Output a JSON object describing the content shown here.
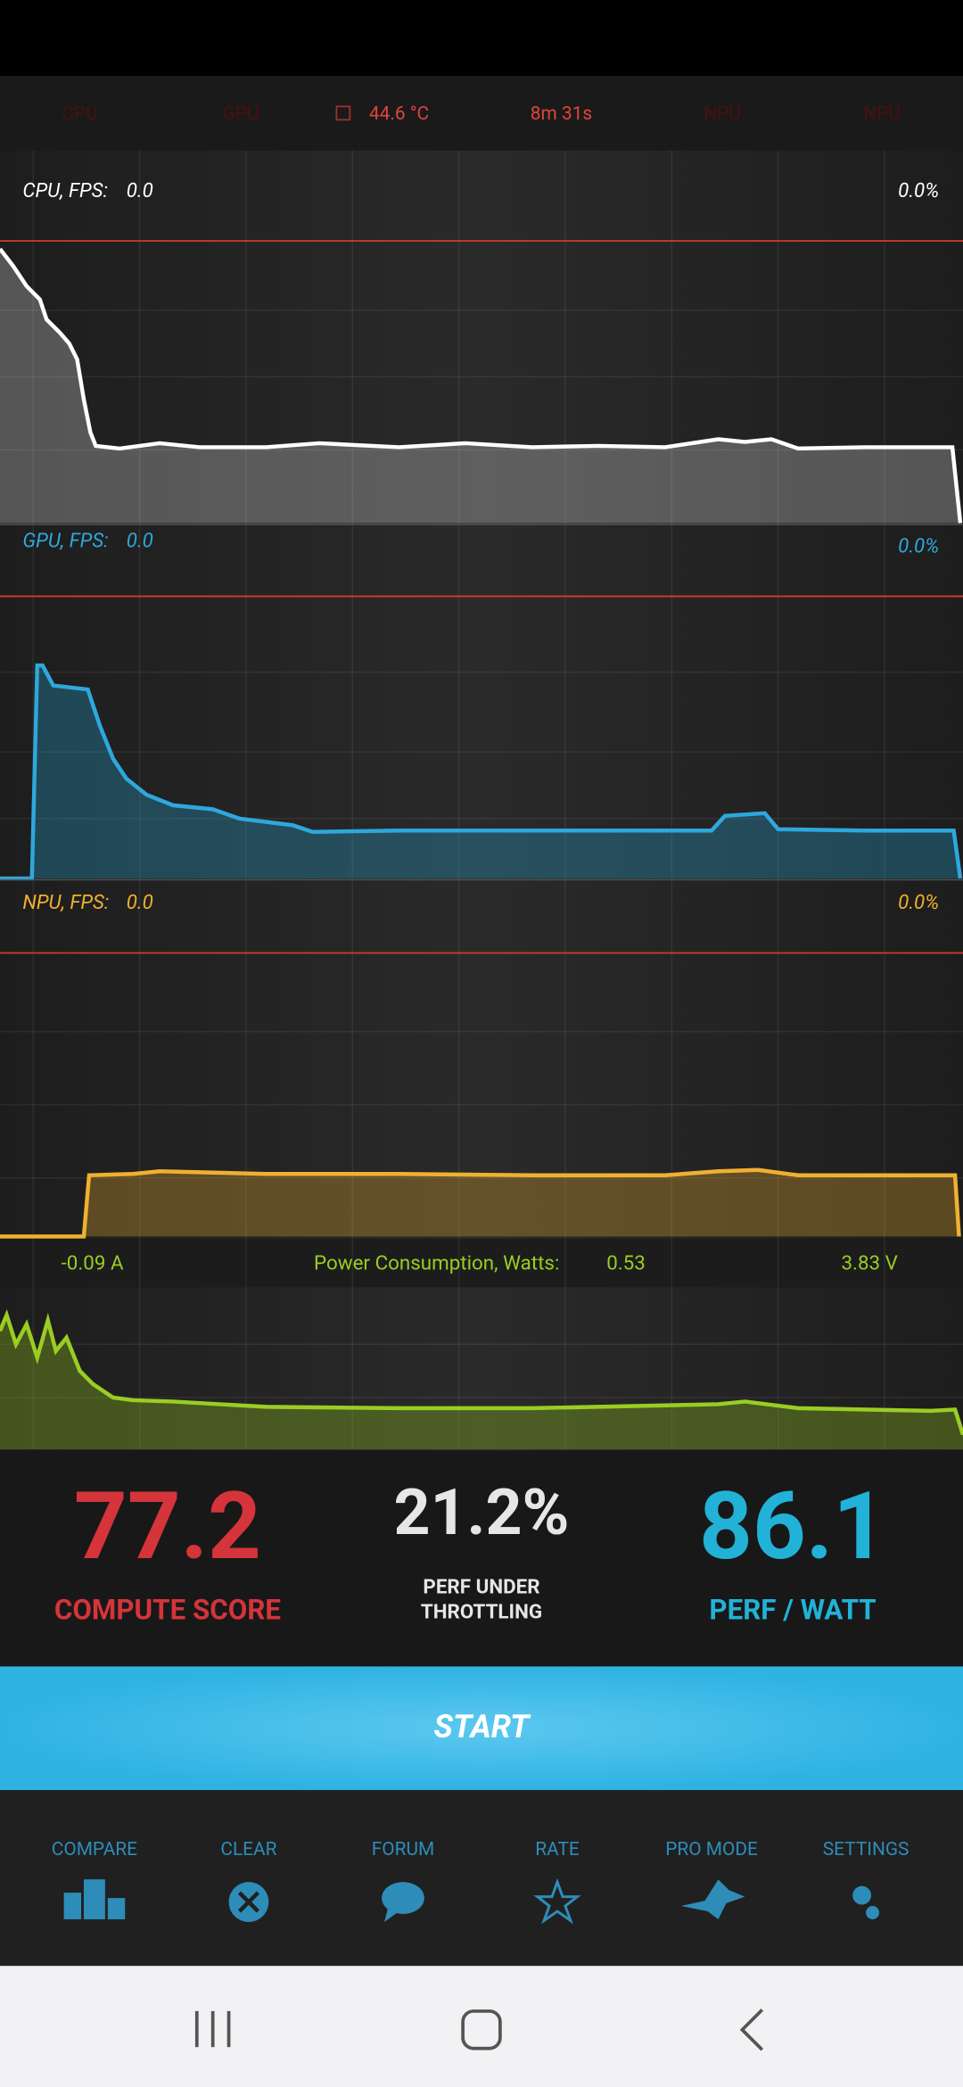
{
  "status_tabs": [
    "CPU",
    "GPU",
    "44.6 °C",
    "8m 31s",
    "NPU",
    "NPU"
  ],
  "graphs": [
    {
      "label": "CPU, FPS:",
      "fps": "0.0",
      "percent": "0.0%"
    },
    {
      "label": "GPU, FPS:",
      "fps": "0.0",
      "percent": "0.0%"
    },
    {
      "label": "NPU, FPS:",
      "fps": "0.0",
      "percent": "0.0%"
    }
  ],
  "power": {
    "current": "-0.09 A",
    "label": "Power Consumption, Watts:",
    "watts": "0.53",
    "voltage": "3.83 V"
  },
  "scores": [
    {
      "value": "77.2",
      "label": [
        "COMPUTE SCORE"
      ]
    },
    {
      "value": "21.2%",
      "label": [
        "PERF UNDER",
        "THROTTLING"
      ]
    },
    {
      "value": "86.1",
      "label": [
        "PERF / WATT"
      ]
    }
  ],
  "start_button": "START",
  "nav": [
    "COMPARE",
    "CLEAR",
    "FORUM",
    "RATE",
    "PRO MODE",
    "SETTINGS"
  ]
}
